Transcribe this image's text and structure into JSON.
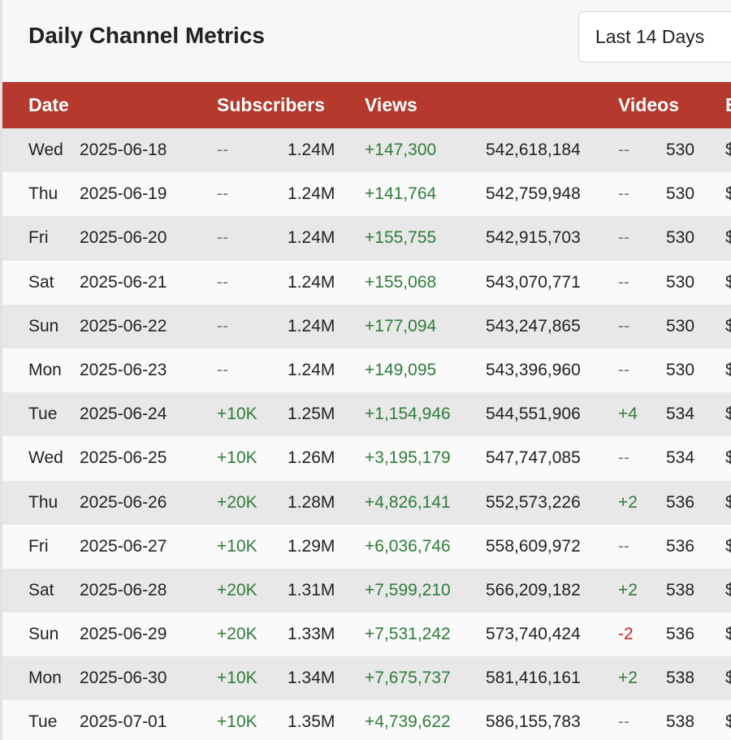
{
  "header": {
    "title": "Daily Channel Metrics",
    "range_select": "Last 14 Days"
  },
  "colors": {
    "header_bg": "#b5392c",
    "positive": "#2e7d3a",
    "negative": "#c62828",
    "neutral": "#777777"
  },
  "table": {
    "columns": {
      "date": "Date",
      "subscribers": "Subscribers",
      "views": "Views",
      "videos": "Videos",
      "extra": "E"
    },
    "rows": [
      {
        "day": "Wed",
        "date": "2025-06-18",
        "sub_delta": "--",
        "sub_total": "1.24M",
        "view_delta": "+147,300",
        "view_total": "542,618,184",
        "video_delta": "--",
        "video_total": "530",
        "extra": "$"
      },
      {
        "day": "Thu",
        "date": "2025-06-19",
        "sub_delta": "--",
        "sub_total": "1.24M",
        "view_delta": "+141,764",
        "view_total": "542,759,948",
        "video_delta": "--",
        "video_total": "530",
        "extra": "$"
      },
      {
        "day": "Fri",
        "date": "2025-06-20",
        "sub_delta": "--",
        "sub_total": "1.24M",
        "view_delta": "+155,755",
        "view_total": "542,915,703",
        "video_delta": "--",
        "video_total": "530",
        "extra": "$"
      },
      {
        "day": "Sat",
        "date": "2025-06-21",
        "sub_delta": "--",
        "sub_total": "1.24M",
        "view_delta": "+155,068",
        "view_total": "543,070,771",
        "video_delta": "--",
        "video_total": "530",
        "extra": "$"
      },
      {
        "day": "Sun",
        "date": "2025-06-22",
        "sub_delta": "--",
        "sub_total": "1.24M",
        "view_delta": "+177,094",
        "view_total": "543,247,865",
        "video_delta": "--",
        "video_total": "530",
        "extra": "$"
      },
      {
        "day": "Mon",
        "date": "2025-06-23",
        "sub_delta": "--",
        "sub_total": "1.24M",
        "view_delta": "+149,095",
        "view_total": "543,396,960",
        "video_delta": "--",
        "video_total": "530",
        "extra": "$"
      },
      {
        "day": "Tue",
        "date": "2025-06-24",
        "sub_delta": "+10K",
        "sub_total": "1.25M",
        "view_delta": "+1,154,946",
        "view_total": "544,551,906",
        "video_delta": "+4",
        "video_total": "534",
        "extra": "$"
      },
      {
        "day": "Wed",
        "date": "2025-06-25",
        "sub_delta": "+10K",
        "sub_total": "1.26M",
        "view_delta": "+3,195,179",
        "view_total": "547,747,085",
        "video_delta": "--",
        "video_total": "534",
        "extra": "$"
      },
      {
        "day": "Thu",
        "date": "2025-06-26",
        "sub_delta": "+20K",
        "sub_total": "1.28M",
        "view_delta": "+4,826,141",
        "view_total": "552,573,226",
        "video_delta": "+2",
        "video_total": "536",
        "extra": "$"
      },
      {
        "day": "Fri",
        "date": "2025-06-27",
        "sub_delta": "+10K",
        "sub_total": "1.29M",
        "view_delta": "+6,036,746",
        "view_total": "558,609,972",
        "video_delta": "--",
        "video_total": "536",
        "extra": "$"
      },
      {
        "day": "Sat",
        "date": "2025-06-28",
        "sub_delta": "+20K",
        "sub_total": "1.31M",
        "view_delta": "+7,599,210",
        "view_total": "566,209,182",
        "video_delta": "+2",
        "video_total": "538",
        "extra": "$"
      },
      {
        "day": "Sun",
        "date": "2025-06-29",
        "sub_delta": "+20K",
        "sub_total": "1.33M",
        "view_delta": "+7,531,242",
        "view_total": "573,740,424",
        "video_delta": "-2",
        "video_total": "536",
        "extra": "$"
      },
      {
        "day": "Mon",
        "date": "2025-06-30",
        "sub_delta": "+10K",
        "sub_total": "1.34M",
        "view_delta": "+7,675,737",
        "view_total": "581,416,161",
        "video_delta": "+2",
        "video_total": "538",
        "extra": "$"
      },
      {
        "day": "Tue",
        "date": "2025-07-01",
        "sub_delta": "+10K",
        "sub_total": "1.35M",
        "view_delta": "+4,739,622",
        "view_total": "586,155,783",
        "video_delta": "--",
        "video_total": "538",
        "extra": "$"
      }
    ]
  }
}
